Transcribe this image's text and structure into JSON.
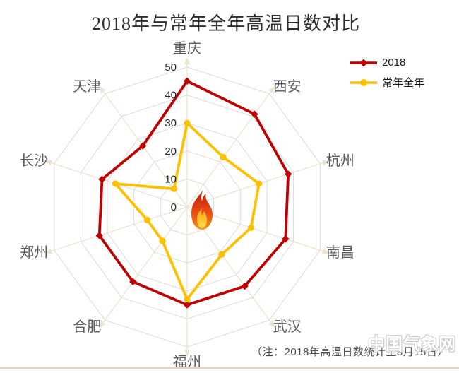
{
  "title": "2018年与常年全年高温日数对比",
  "note": "（注：2018年高温日数统计至8月15日）",
  "watermark": "中国气象网",
  "icons": {
    "center": "flame-icon",
    "axis_tip": "spoke-arrow-icon"
  },
  "colors": {
    "series_2018": "#C00000",
    "series_normal": "#FFC000",
    "grid_ring": "#DBDBDB",
    "axis_spoke": "#EDE4D0",
    "category_label": "#595959",
    "tick_label": "#262626",
    "note_text": "#4D4D4D",
    "bottom_rule": "#F5CCBC"
  },
  "chart_data": {
    "type": "radar",
    "title": "2018年与常年全年高温日数对比",
    "categories": [
      "重庆",
      "西安",
      "杭州",
      "南昌",
      "武汉",
      "福州",
      "合肥",
      "郑州",
      "长沙",
      "天津"
    ],
    "series": [
      {
        "name": "2018",
        "color": "#C00000",
        "marker": "diamond",
        "values": [
          45,
          41,
          38,
          37,
          35,
          35,
          33,
          33,
          32,
          27
        ]
      },
      {
        "name": "常年全年",
        "color": "#FFC000",
        "marker": "circle",
        "values": [
          30,
          22,
          27,
          24,
          21,
          33,
          15,
          15,
          27,
          8
        ]
      }
    ],
    "axis": {
      "min": 0,
      "max": 50,
      "step": 10,
      "tick_labels": [
        "0",
        "10",
        "20",
        "30",
        "40",
        "50"
      ]
    },
    "grid": true,
    "legend_position": "top-right",
    "note": "（注：2018年高温日数统计至8月15日）"
  }
}
